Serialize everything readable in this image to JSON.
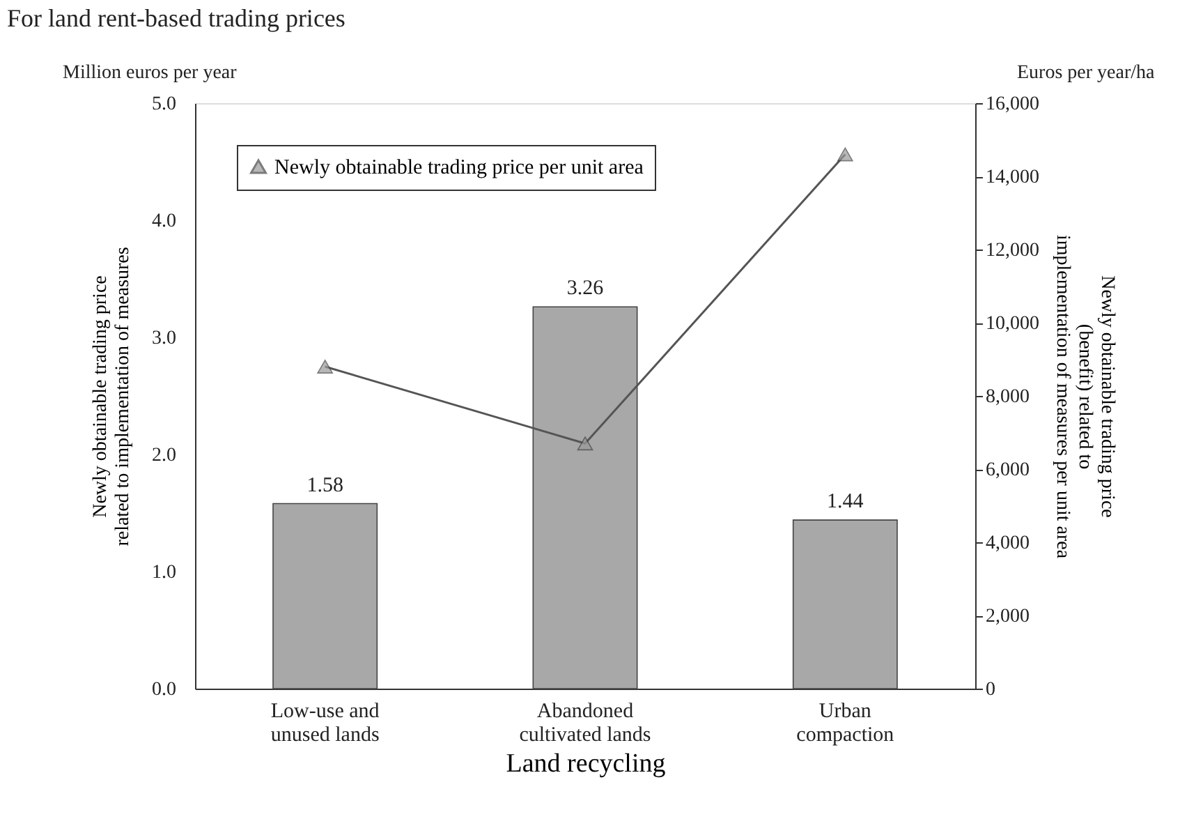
{
  "chart_data": {
    "type": "bar",
    "title": "For land rent-based trading prices",
    "categories": [
      "Low-use and unused lands",
      "Abandoned cultivated lands",
      "Urban compaction"
    ],
    "xlabel": "Land recycling",
    "ylabel": "Newly obtainable trading price related to implementation of measures",
    "y2label": "Newly obtainable trading price (benefit) related to implementation of measures per unit area",
    "annotations": [
      "Million euros per year",
      "Euros per year/ha"
    ],
    "series": [
      {
        "color": "#a8a8a8",
        "values": [
          1.58,
          3.26,
          1.44
        ],
        "value_labels": [
          "1.58",
          "3.26",
          "1.44"
        ]
      },
      {
        "type": "line",
        "name": "Newly obtainable trading price per unit area",
        "axis": "y2",
        "color": "#555555",
        "marker": "triangle",
        "values": [
          8800,
          6700,
          14600
        ]
      }
    ],
    "ylim": [
      0,
      5
    ],
    "yticks": [
      {
        "value": 0,
        "label": "0.0"
      },
      {
        "value": 1,
        "label": "1.0"
      },
      {
        "value": 2,
        "label": "2.0"
      },
      {
        "value": 3,
        "label": "3.0"
      },
      {
        "value": 4,
        "label": "4.0"
      },
      {
        "value": 5,
        "label": "5.0"
      }
    ],
    "y2lim": [
      0,
      16000
    ],
    "y2ticks": [
      0,
      {
        "value": 2000,
        "label": "2,000"
      },
      {
        "value": 4000,
        "label": "4,000"
      },
      {
        "value": 6000,
        "label": "6,000"
      },
      {
        "value": 8000,
        "label": "8,000"
      },
      {
        "value": 10000,
        "label": "10,000"
      },
      {
        "value": 12000,
        "label": "12,000"
      },
      {
        "value": 14000,
        "label": "14,000"
      },
      {
        "value": 16000,
        "label": "16,000"
      }
    ],
    "grid": false,
    "legend": "top left"
  }
}
